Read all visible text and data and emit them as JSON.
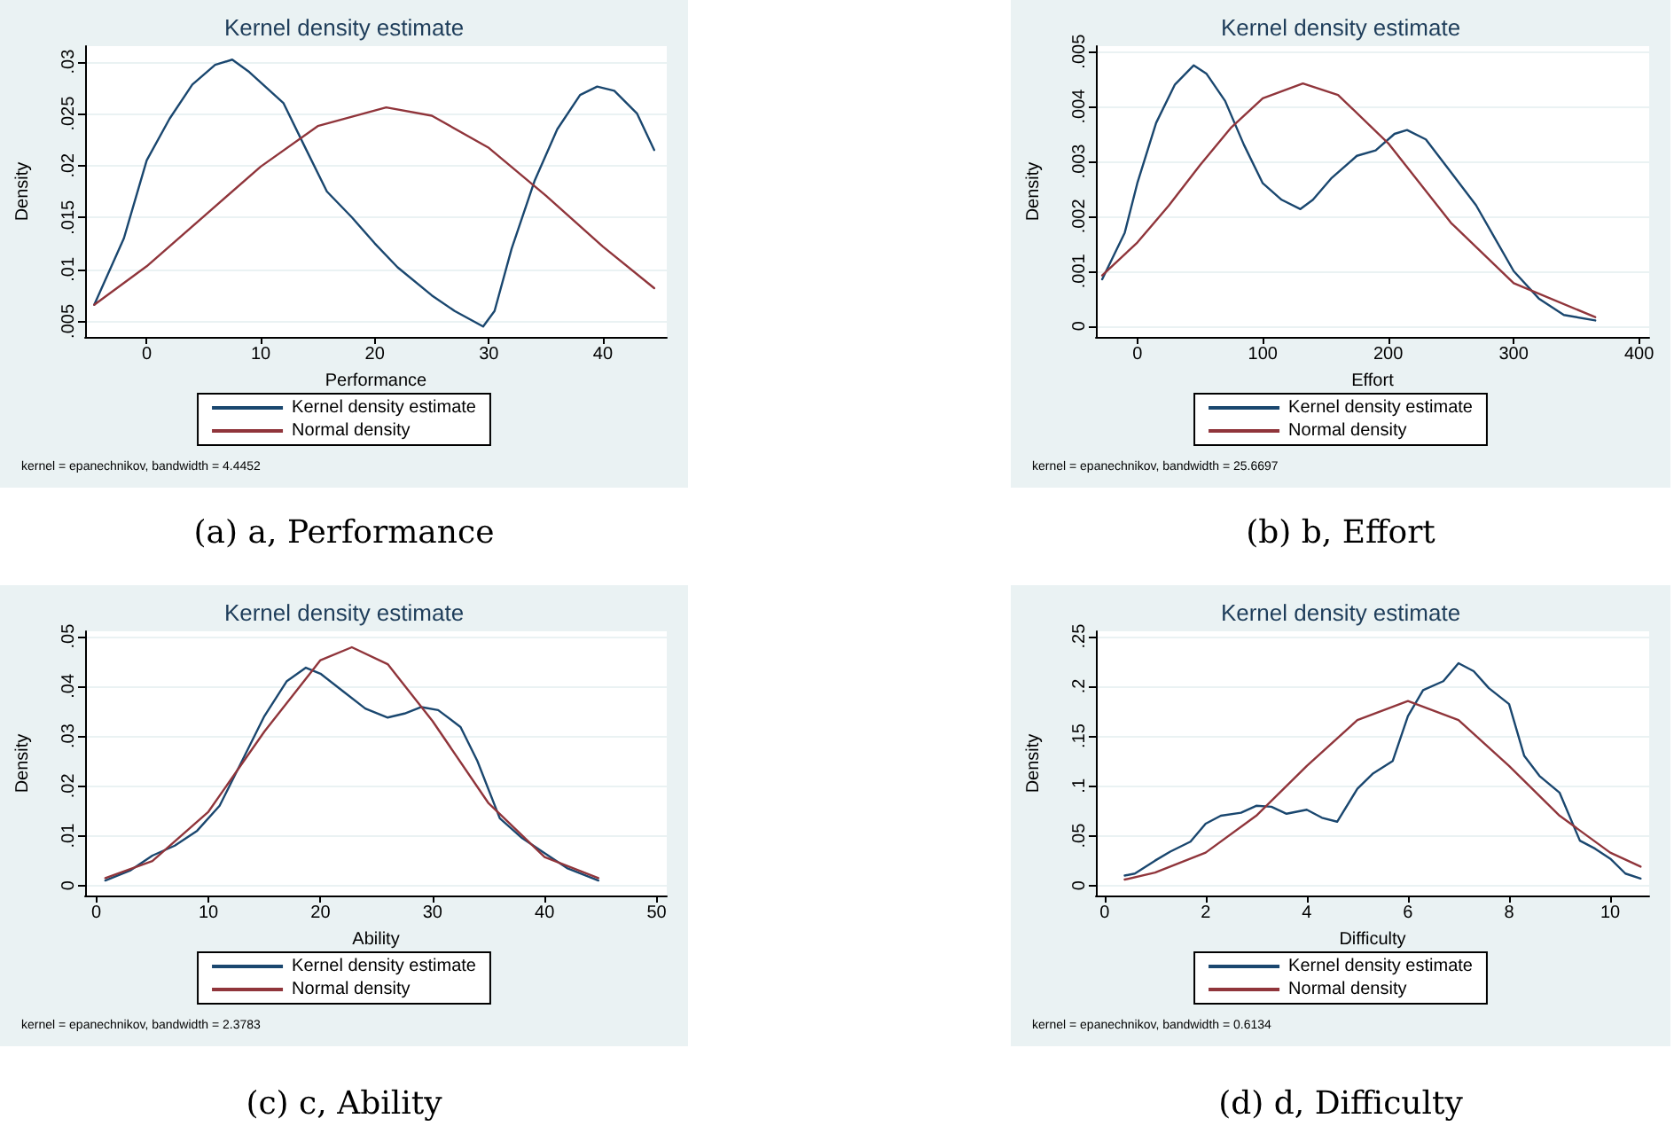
{
  "chart_data": [
    {
      "type": "line",
      "title": "Kernel density estimate",
      "xlabel": "Performance",
      "ylabel": "Density",
      "xlim": [
        -5.4,
        45.6
      ],
      "xticks": [
        0,
        10,
        20,
        30,
        40
      ],
      "ylim": [
        0.0035,
        0.0315
      ],
      "yticks": [
        {
          "value": 0.005,
          "label": ".005"
        },
        {
          "value": 0.01,
          "label": ".01"
        },
        {
          "value": 0.015,
          "label": ".015"
        },
        {
          "value": 0.02,
          "label": ".02"
        },
        {
          "value": 0.025,
          "label": ".025"
        },
        {
          "value": 0.03,
          "label": ".03"
        }
      ],
      "grid": "y",
      "legend": "bottom",
      "annotations": [
        "kernel = epanechnikov, bandwidth = 4.4452",
        "(a) a, Performance"
      ],
      "series": [
        {
          "name": "Kernel density estimate",
          "color": "#1a476f",
          "x": [
            -4.6,
            -2,
            0,
            2,
            4,
            6,
            7.5,
            9,
            12,
            14,
            15.8,
            18,
            20,
            22,
            25,
            27,
            29.5,
            30.5,
            32,
            34,
            36,
            38,
            39.5,
            41,
            43,
            44.5
          ],
          "values": [
            0.0066,
            0.013,
            0.0205,
            0.0245,
            0.0278,
            0.0297,
            0.0302,
            0.029,
            0.026,
            0.0215,
            0.0175,
            0.015,
            0.0125,
            0.0102,
            0.0075,
            0.006,
            0.0045,
            0.006,
            0.012,
            0.0185,
            0.0235,
            0.0268,
            0.0276,
            0.0272,
            0.025,
            0.0215
          ]
        },
        {
          "name": "Normal density",
          "color": "#90353b",
          "x": [
            -4.6,
            0,
            5,
            10,
            15,
            21,
            25,
            30,
            35,
            40,
            44.5
          ],
          "values": [
            0.0066,
            0.0103,
            0.0151,
            0.0199,
            0.0238,
            0.0256,
            0.0248,
            0.0217,
            0.0171,
            0.0122,
            0.0082
          ]
        }
      ]
    },
    {
      "type": "line",
      "title": "Kernel density estimate",
      "xlabel": "Effort",
      "ylabel": "Density",
      "xlim": [
        -33,
        408
      ],
      "xticks": [
        0,
        100,
        200,
        300,
        400
      ],
      "ylim": [
        -0.0002,
        0.0051
      ],
      "yticks": [
        {
          "value": 0,
          "label": "0"
        },
        {
          "value": 0.001,
          "label": ".001"
        },
        {
          "value": 0.002,
          "label": ".002"
        },
        {
          "value": 0.003,
          "label": ".003"
        },
        {
          "value": 0.004,
          "label": ".004"
        },
        {
          "value": 0.005,
          "label": ".005"
        }
      ],
      "grid": "y",
      "legend": "bottom",
      "annotations": [
        "kernel = epanechnikov, bandwidth = 25.6697",
        "(b) b, Effort"
      ],
      "series": [
        {
          "name": "Kernel density estimate",
          "color": "#1a476f",
          "x": [
            -28,
            -10,
            0,
            15,
            30,
            45,
            55,
            70,
            85,
            100,
            115,
            130,
            140,
            155,
            175,
            190,
            205,
            215,
            230,
            250,
            270,
            285,
            300,
            320,
            340,
            365
          ],
          "values": [
            0.00085,
            0.0017,
            0.0026,
            0.0037,
            0.0044,
            0.00475,
            0.0046,
            0.0041,
            0.0033,
            0.0026,
            0.0023,
            0.00213,
            0.0023,
            0.0027,
            0.0031,
            0.0032,
            0.0035,
            0.00357,
            0.0034,
            0.0028,
            0.0022,
            0.0016,
            0.001,
            0.0005,
            0.0002,
            0.0001
          ]
        },
        {
          "name": "Normal density",
          "color": "#90353b",
          "x": [
            -28,
            0,
            25,
            50,
            75,
            100,
            132,
            160,
            200,
            250,
            300,
            365
          ],
          "values": [
            0.00092,
            0.00152,
            0.00219,
            0.00293,
            0.00362,
            0.00415,
            0.00442,
            0.00421,
            0.00333,
            0.00188,
            0.00078,
            0.00016
          ]
        }
      ]
    },
    {
      "type": "line",
      "title": "Kernel density estimate",
      "xlabel": "Ability",
      "ylabel": "Density",
      "xlim": [
        -1,
        50.9
      ],
      "xticks": [
        0,
        10,
        20,
        30,
        40,
        50
      ],
      "ylim": [
        -0.002,
        0.051
      ],
      "yticks": [
        {
          "value": 0,
          "label": "0"
        },
        {
          "value": 0.01,
          "label": ".01"
        },
        {
          "value": 0.02,
          "label": ".02"
        },
        {
          "value": 0.03,
          "label": ".03"
        },
        {
          "value": 0.04,
          "label": ".04"
        },
        {
          "value": 0.05,
          "label": ".05"
        }
      ],
      "grid": "y",
      "legend": "bottom",
      "annotations": [
        "kernel = epanechnikov, bandwidth = 2.3783",
        "(c) c, Ability"
      ],
      "series": [
        {
          "name": "Kernel density estimate",
          "color": "#1a476f",
          "x": [
            0.8,
            3,
            5,
            7,
            9,
            11,
            13,
            15,
            17,
            18.7,
            20,
            22,
            24,
            26,
            27.5,
            29,
            30.5,
            32.5,
            34,
            36,
            38,
            40,
            42,
            44.8
          ],
          "values": [
            0.001,
            0.003,
            0.006,
            0.008,
            0.011,
            0.016,
            0.025,
            0.034,
            0.041,
            0.0437,
            0.0425,
            0.039,
            0.0355,
            0.0337,
            0.0345,
            0.0358,
            0.0352,
            0.0318,
            0.025,
            0.0135,
            0.0095,
            0.0065,
            0.0035,
            0.001
          ]
        },
        {
          "name": "Normal density",
          "color": "#90353b",
          "x": [
            0.8,
            5,
            10,
            15,
            20,
            22.8,
            26,
            30,
            35,
            40,
            44.8
          ],
          "values": [
            0.0015,
            0.0049,
            0.0148,
            0.0309,
            0.0452,
            0.0478,
            0.0444,
            0.033,
            0.0165,
            0.0057,
            0.0015
          ]
        }
      ]
    },
    {
      "type": "line",
      "title": "Kernel density estimate",
      "xlabel": "Difficulty",
      "ylabel": "Density",
      "xlim": [
        -0.17,
        10.77
      ],
      "xticks": [
        0,
        2,
        4,
        6,
        8,
        10
      ],
      "ylim": [
        -0.01,
        0.255
      ],
      "yticks": [
        {
          "value": 0,
          "label": "0"
        },
        {
          "value": 0.05,
          "label": ".05"
        },
        {
          "value": 0.1,
          "label": ".1"
        },
        {
          "value": 0.15,
          "label": ".15"
        },
        {
          "value": 0.2,
          "label": ".2"
        },
        {
          "value": 0.25,
          "label": ".25"
        }
      ],
      "grid": "y",
      "legend": "bottom",
      "annotations": [
        "kernel = epanechnikov, bandwidth = 0.6134",
        "(d) d, Difficulty"
      ],
      "series": [
        {
          "name": "Kernel density estimate",
          "color": "#1a476f",
          "x": [
            0.4,
            0.6,
            1,
            1.3,
            1.7,
            2,
            2.3,
            2.7,
            3,
            3.3,
            3.6,
            4,
            4.3,
            4.6,
            5,
            5.3,
            5.7,
            6,
            6.3,
            6.7,
            7,
            7.3,
            7.6,
            8,
            8.3,
            8.6,
            9,
            9.4,
            9.7,
            10,
            10.3,
            10.6
          ],
          "values": [
            0.01,
            0.012,
            0.025,
            0.034,
            0.044,
            0.062,
            0.07,
            0.073,
            0.08,
            0.079,
            0.072,
            0.076,
            0.068,
            0.064,
            0.097,
            0.112,
            0.125,
            0.17,
            0.196,
            0.205,
            0.223,
            0.215,
            0.198,
            0.182,
            0.13,
            0.11,
            0.093,
            0.045,
            0.037,
            0.027,
            0.012,
            0.007
          ]
        },
        {
          "name": "Normal density",
          "color": "#90353b",
          "x": [
            0.4,
            1,
            2,
            3,
            4,
            5,
            6,
            7,
            8,
            9,
            10,
            10.6
          ],
          "values": [
            0.006,
            0.013,
            0.033,
            0.07,
            0.12,
            0.166,
            0.185,
            0.166,
            0.12,
            0.07,
            0.033,
            0.019
          ]
        }
      ]
    }
  ]
}
